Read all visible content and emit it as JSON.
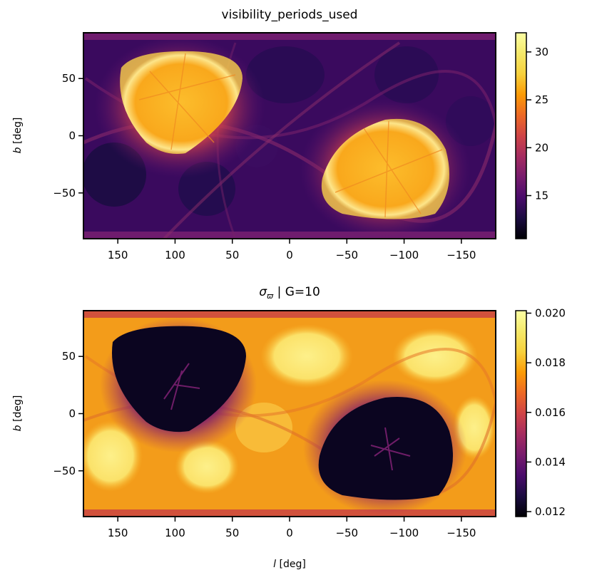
{
  "chart_data": [
    {
      "type": "heatmap",
      "title": "visibility_periods_used",
      "xlabel": "",
      "ylabel_italic": "b",
      "ylabel_rest": " [deg]",
      "xlim": [
        180,
        -180
      ],
      "ylim": [
        -90,
        90
      ],
      "xticks": [
        150,
        100,
        50,
        0,
        -50,
        -100,
        -150
      ],
      "xtick_labels": [
        "150",
        "100",
        "50",
        "0",
        "−50",
        "−100",
        "−150"
      ],
      "yticks": [
        50,
        0,
        -50
      ],
      "ytick_labels": [
        "50",
        "0",
        "−50"
      ],
      "colormap": "inferno",
      "colorbar": {
        "range": [
          10.5,
          32
        ],
        "ticks": [
          15,
          20,
          25,
          30
        ],
        "tick_labels": [
          "15",
          "20",
          "25",
          "30"
        ]
      },
      "features": [
        {
          "name": "upper-left bright blob",
          "center_l": 100,
          "center_b": 30,
          "value": 30
        },
        {
          "name": "lower-right bright blob",
          "center_l": -85,
          "center_b": -30,
          "value": 30
        },
        {
          "name": "background",
          "value": 14
        }
      ]
    },
    {
      "type": "heatmap",
      "title_sigma": "σ",
      "title_subscript": "ϖ",
      "title_rest": " | G=10",
      "xlabel_italic": "l",
      "xlabel_rest": " [deg]",
      "ylabel_italic": "b",
      "ylabel_rest": " [deg]",
      "xlim": [
        180,
        -180
      ],
      "ylim": [
        -90,
        90
      ],
      "xticks": [
        150,
        100,
        50,
        0,
        -50,
        -100,
        -150
      ],
      "xtick_labels": [
        "150",
        "100",
        "50",
        "0",
        "−50",
        "−100",
        "−150"
      ],
      "yticks": [
        50,
        0,
        -50
      ],
      "ytick_labels": [
        "50",
        "0",
        "−50"
      ],
      "colormap": "inferno",
      "colorbar": {
        "range": [
          0.0118,
          0.0201
        ],
        "ticks": [
          0.012,
          0.014,
          0.016,
          0.018,
          0.02
        ],
        "tick_labels": [
          "0.012",
          "0.014",
          "0.016",
          "0.018",
          "0.020"
        ]
      },
      "features": [
        {
          "name": "upper-left dark blob",
          "center_l": 100,
          "center_b": 30,
          "value": 0.012
        },
        {
          "name": "lower-right dark blob",
          "center_l": -85,
          "center_b": -30,
          "value": 0.012
        },
        {
          "name": "background",
          "value": 0.018
        }
      ]
    }
  ]
}
